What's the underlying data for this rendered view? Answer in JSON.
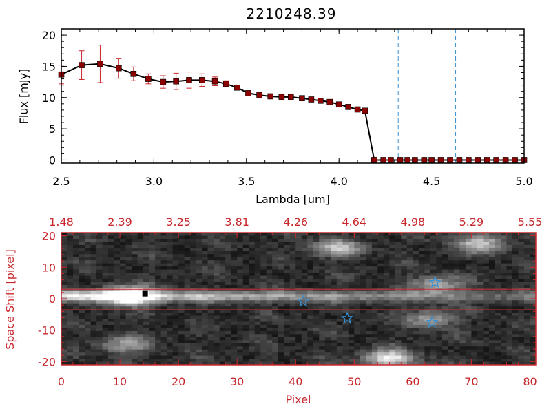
{
  "chart_data": [
    {
      "type": "line",
      "title": "2210248.39",
      "xlabel": "Lambda [um]",
      "ylabel": "Flux [mJy]",
      "xlim": [
        2.5,
        5.0
      ],
      "ylim": [
        -0.5,
        21
      ],
      "xticks": [
        "2.5",
        "3.0",
        "3.5",
        "4.0",
        "4.5",
        "5.0"
      ],
      "yticks": [
        "0",
        "5",
        "10",
        "15",
        "20"
      ],
      "colors": {
        "line": "#000000",
        "marker": "#8b0000",
        "errorbar": "#c8282d",
        "vline": "#3a8fd0",
        "zero_line": "#c8282d"
      },
      "vlines": [
        4.32,
        4.63
      ],
      "series": [
        {
          "name": "Flux",
          "x": [
            2.5,
            2.61,
            2.71,
            2.81,
            2.89,
            2.97,
            3.05,
            3.12,
            3.19,
            3.26,
            3.33,
            3.39,
            3.45,
            3.51,
            3.57,
            3.63,
            3.69,
            3.74,
            3.8,
            3.85,
            3.9,
            3.95,
            4.0,
            4.05,
            4.1,
            4.14,
            4.19,
            4.24,
            4.28,
            4.33,
            4.37,
            4.41,
            4.46,
            4.5,
            4.55,
            4.6,
            4.65,
            4.7,
            4.75,
            4.8,
            4.85,
            4.9,
            4.95,
            5.0
          ],
          "y": [
            13.7,
            15.2,
            15.4,
            14.7,
            13.8,
            13.0,
            12.5,
            12.6,
            12.8,
            12.8,
            12.6,
            12.2,
            11.6,
            10.7,
            10.4,
            10.2,
            10.1,
            10.1,
            9.9,
            9.7,
            9.5,
            9.3,
            8.9,
            8.5,
            8.1,
            7.9,
            0,
            0,
            0,
            0,
            0,
            0,
            0,
            0,
            0,
            0,
            0,
            0,
            0,
            0,
            0,
            0,
            0,
            0
          ],
          "yerr": [
            1.5,
            2.3,
            3.0,
            1.6,
            1.1,
            0.8,
            1.0,
            1.3,
            1.3,
            1.0,
            0.7,
            0.5,
            0.3,
            0.2,
            0.2,
            0.2,
            0.2,
            0.2,
            0.2,
            0.2,
            0.2,
            0.2,
            0.2,
            0.2,
            0.2,
            0.2,
            0,
            0,
            0,
            0,
            0,
            0,
            0,
            0,
            0,
            0,
            0,
            0,
            0,
            0,
            0,
            0,
            0,
            0
          ]
        }
      ]
    },
    {
      "type": "heatmap",
      "xlabel": "Pixel",
      "ylabel": "Space Shift [pixel]",
      "xlim": [
        0,
        81
      ],
      "ylim": [
        -21,
        21
      ],
      "xticks": [
        "0",
        "10",
        "20",
        "30",
        "40",
        "50",
        "60",
        "70",
        "80"
      ],
      "yticks": [
        "-20",
        "-10",
        "0",
        "10",
        "20"
      ],
      "top_axis_values": [
        1.48,
        2.39,
        3.25,
        3.81,
        4.26,
        4.64,
        4.98,
        5.29,
        5.55
      ],
      "top_axis_labels": [
        "1.48",
        "2.39",
        "3.25",
        "3.81",
        "4.26",
        "4.64",
        "4.98",
        "5.29",
        "5.55"
      ],
      "colors": {
        "axis": "#c8282d",
        "star": "#3a8fd0",
        "marker": "#000000"
      },
      "extraction_band": [
        -3.5,
        3.0
      ],
      "center_marker": {
        "x": 14.3,
        "y": 1.6
      },
      "stars": [
        {
          "x": 41.3,
          "y": -0.8
        },
        {
          "x": 48.8,
          "y": -6.2
        },
        {
          "x": 63.8,
          "y": 5.2
        },
        {
          "x": 63.3,
          "y": -7.5
        }
      ],
      "sources": [
        {
          "x": 11.5,
          "y": 0.5,
          "strength": 1.0
        },
        {
          "x": 47.0,
          "y": 16.0,
          "strength": 0.55
        },
        {
          "x": 64.0,
          "y": 4.0,
          "strength": 0.5
        },
        {
          "x": 63.0,
          "y": -7.0,
          "strength": 0.45
        },
        {
          "x": 71.5,
          "y": 17.5,
          "strength": 0.6
        },
        {
          "x": 56.0,
          "y": -20.0,
          "strength": 0.75
        },
        {
          "x": 11.0,
          "y": -15.5,
          "strength": 0.45
        }
      ]
    }
  ]
}
